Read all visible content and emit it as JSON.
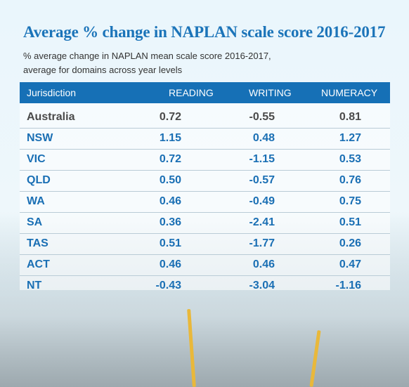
{
  "title": "Average % change in NAPLAN scale score 2016-2017",
  "subtitle_lines": [
    "% average change in NAPLAN mean scale score 2016-2017,",
    "average for domains across year levels"
  ],
  "colors": {
    "accent": "#1670b6",
    "header_text": "#ffffff",
    "value_gray": "#4a4a4a",
    "value_blue": "#1a6fb4"
  },
  "chart_data": {
    "type": "table",
    "title": "Average % change in NAPLAN scale score 2016-2017",
    "columns": [
      "Jurisdiction",
      "READING",
      "WRITING",
      "NUMERACY"
    ],
    "rows": [
      {
        "jurisdiction": "Australia",
        "reading": "0.72",
        "writing": "-0.55",
        "numeracy": "0.81"
      },
      {
        "jurisdiction": "NSW",
        "reading": "1.15",
        "writing": "0.48",
        "numeracy": "1.27"
      },
      {
        "jurisdiction": "VIC",
        "reading": "0.72",
        "writing": "-1.15",
        "numeracy": "0.53"
      },
      {
        "jurisdiction": "QLD",
        "reading": "0.50",
        "writing": "-0.57",
        "numeracy": "0.76"
      },
      {
        "jurisdiction": "WA",
        "reading": "0.46",
        "writing": "-0.49",
        "numeracy": "0.75"
      },
      {
        "jurisdiction": "SA",
        "reading": "0.36",
        "writing": "-2.41",
        "numeracy": "0.51"
      },
      {
        "jurisdiction": "TAS",
        "reading": "0.51",
        "writing": "-1.77",
        "numeracy": "0.26"
      },
      {
        "jurisdiction": "ACT",
        "reading": "0.46",
        "writing": "0.46",
        "numeracy": "0.47"
      },
      {
        "jurisdiction": "NT",
        "reading": "-0.43",
        "writing": "-3.04",
        "numeracy": "-1.16"
      }
    ]
  }
}
